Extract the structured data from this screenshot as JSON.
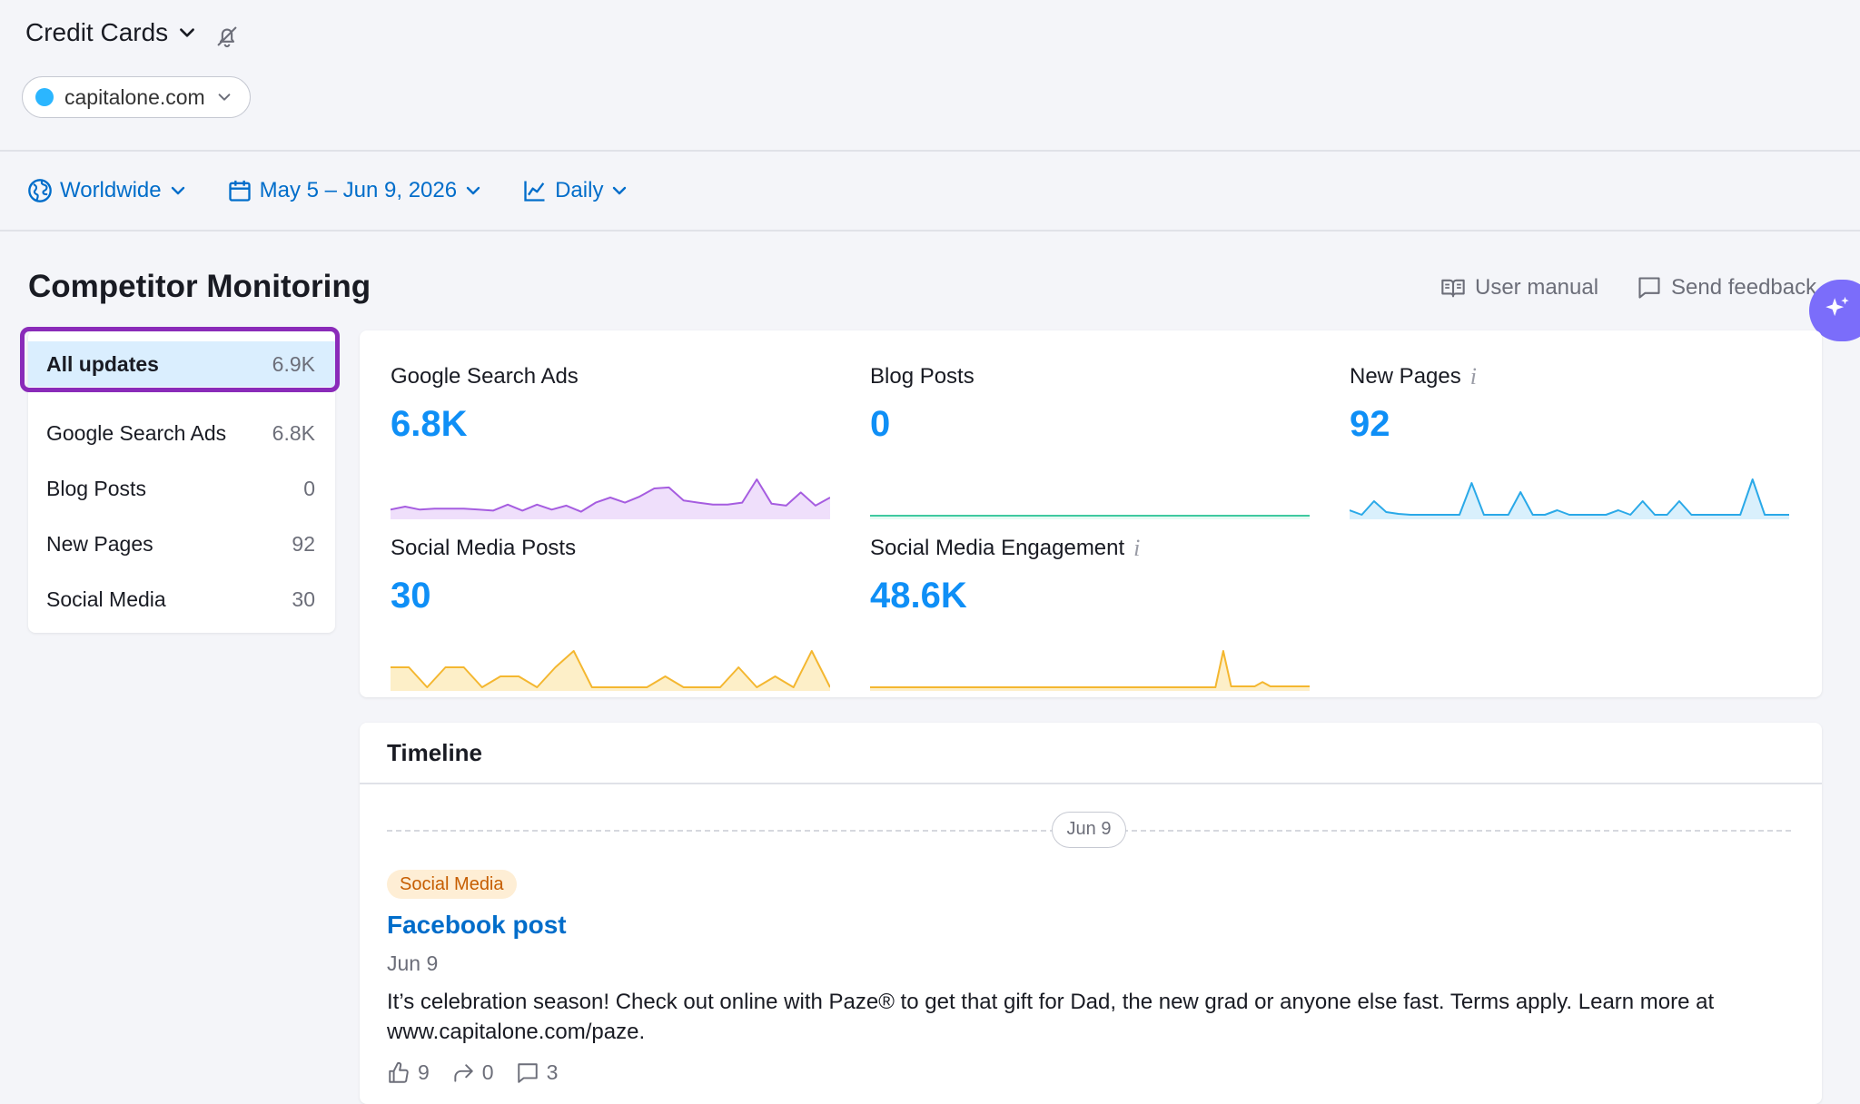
{
  "header": {
    "project_label": "Credit Cards",
    "domain_chip": "capitalone.com"
  },
  "filters": {
    "location": "Worldwide",
    "date_range": "May 5 – Jun 9, 2026",
    "granularity": "Daily"
  },
  "page": {
    "title": "Competitor Monitoring",
    "user_manual": "User manual",
    "send_feedback": "Send feedback"
  },
  "menu": {
    "items": [
      {
        "label": "All updates",
        "count": "6.9K"
      },
      {
        "label": "Google Search Ads",
        "count": "6.8K"
      },
      {
        "label": "Blog Posts",
        "count": "0"
      },
      {
        "label": "New Pages",
        "count": "92"
      },
      {
        "label": "Social Media",
        "count": "30"
      }
    ]
  },
  "metrics": [
    {
      "label": "Google Search Ads",
      "value": "6.8K",
      "color": "#a65de0",
      "fill": "#efdffb",
      "trend": [
        6,
        9,
        6,
        7,
        7,
        7,
        6,
        5,
        11,
        5,
        11,
        6,
        10,
        4,
        13,
        18,
        13,
        19,
        27,
        28,
        15,
        13,
        11,
        11,
        13,
        36,
        12,
        10,
        23,
        10,
        18
      ]
    },
    {
      "label": "Blog Posts",
      "value": "0",
      "color": "#3fc9a0",
      "fill": "#e6faf3",
      "trend": [
        0,
        0,
        0,
        0,
        0,
        0,
        0,
        0,
        0,
        0,
        0,
        0,
        0,
        0,
        0,
        0,
        0,
        0,
        0,
        0,
        0,
        0,
        0,
        0,
        0,
        0,
        0,
        0,
        0,
        0,
        0
      ]
    },
    {
      "label": "New Pages",
      "value": "92",
      "info": "i",
      "color": "#2aa9e8",
      "fill": "#d9f0fc",
      "trend": [
        6,
        1,
        16,
        4,
        2,
        1,
        1,
        1,
        1,
        1,
        36,
        1,
        1,
        1,
        26,
        1,
        1,
        6,
        1,
        1,
        1,
        1,
        6,
        1,
        16,
        1,
        1,
        16,
        1,
        1,
        1,
        1,
        1,
        40,
        1,
        1,
        1
      ]
    },
    {
      "label": "Social Media Posts",
      "value": "30",
      "color": "#f4b730",
      "fill": "#fdefc8",
      "trend": [
        22,
        22,
        0,
        22,
        22,
        0,
        12,
        12,
        0,
        22,
        40,
        0,
        0,
        0,
        0,
        12,
        0,
        0,
        0,
        22,
        0,
        12,
        0,
        40,
        0
      ]
    },
    {
      "label": "Social Media Engagement",
      "value": "48.6K",
      "info": "i",
      "color": "#f4b730",
      "fill": "#fdefc8",
      "trend": [
        0,
        0,
        0,
        0,
        0,
        0,
        0,
        0,
        0,
        0,
        0,
        0,
        0,
        0,
        0,
        0,
        0,
        0,
        0,
        0,
        0,
        0,
        0,
        0,
        0,
        0,
        0,
        0,
        0,
        0,
        0,
        0,
        0,
        0,
        0,
        0,
        0,
        0,
        0,
        0,
        0,
        0,
        0,
        0,
        0,
        42,
        1,
        1,
        1,
        1,
        6,
        1,
        1,
        1,
        1,
        1,
        1
      ]
    }
  ],
  "timeline": {
    "title": "Timeline",
    "date_divider": "Jun 9",
    "post": {
      "tag": "Social Media",
      "title": "Facebook post",
      "date": "Jun 9",
      "text": "It’s celebration season! Check out online with Paze® to get that gift for Dad, the new grad or anyone else fast. Terms apply. Learn more at www.capitalone.com/paze.",
      "likes": "9",
      "shares": "0",
      "comments": "3"
    }
  }
}
